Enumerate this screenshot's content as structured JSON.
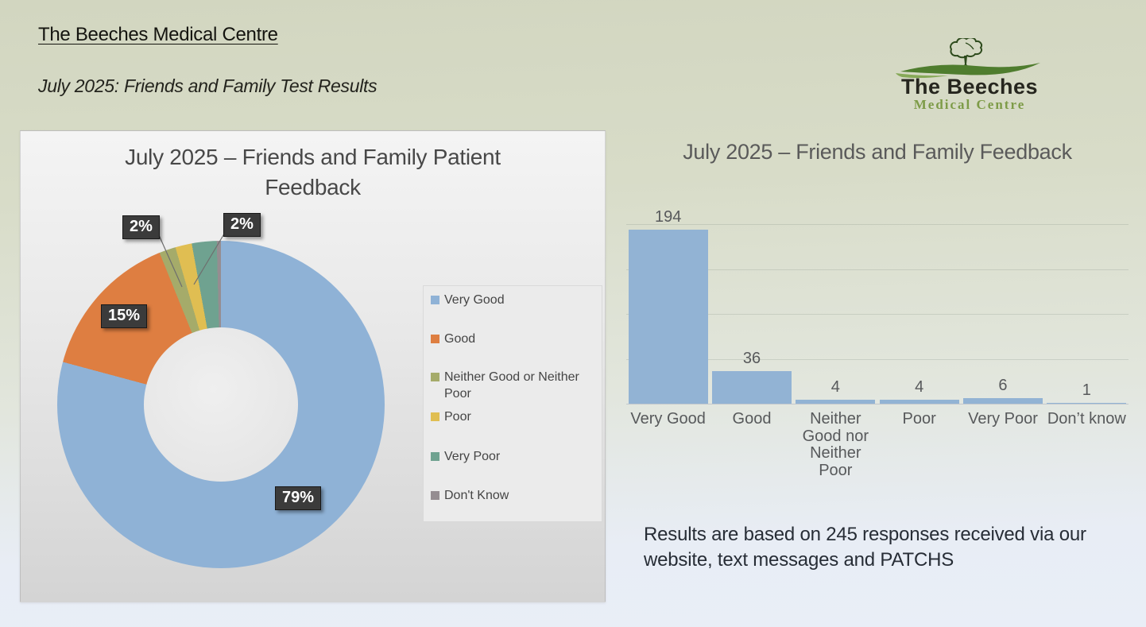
{
  "header": {
    "title": "The Beeches Medical Centre",
    "subtitle": "July 2025: Friends and Family Test Results"
  },
  "logo": {
    "name": "The Beeches",
    "tagline": "Medical Centre"
  },
  "footer_note": "Results are based on 245 responses received via our website, text messages and PATCHS",
  "colors": {
    "very_good": "#8fb2d6",
    "good": "#de7e41",
    "neither": "#a5ab6a",
    "poor": "#e0be52",
    "very_poor": "#6fa290",
    "dont_know": "#958d91",
    "bar_fill": "#92b3d4",
    "label_box": "#3b3b3b"
  },
  "chart_data": [
    {
      "type": "pie",
      "subtype": "donut",
      "title": "July 2025 – Friends and Family Patient Feedback",
      "categories": [
        "Very Good",
        "Good",
        "Neither Good or Neither Poor",
        "Poor",
        "Very Poor",
        "Don't Know"
      ],
      "values": [
        194,
        36,
        4,
        4,
        6,
        1
      ],
      "colors": [
        "#8fb2d6",
        "#de7e41",
        "#a5ab6a",
        "#e0be52",
        "#6fa290",
        "#958d91"
      ],
      "percent_labels": {
        "very_good": "79%",
        "good": "15%",
        "neither": "2%",
        "very_poor": "2%"
      },
      "legend_position": "right",
      "start_angle_deg": 0,
      "direction": "clockwise"
    },
    {
      "type": "bar",
      "title": "July 2025 – Friends and Family Feedback",
      "categories": [
        "Very Good",
        "Good",
        "Neither\nGood nor\nNeither Poor",
        "Poor",
        "Very Poor",
        "Don’t know"
      ],
      "values": [
        194,
        36,
        4,
        4,
        6,
        1
      ],
      "data_labels": [
        "194",
        "36",
        "4",
        "4",
        "6",
        "1"
      ],
      "ylim": [
        0,
        200
      ],
      "gridline_values": [
        50,
        100,
        150,
        200
      ],
      "grid": true,
      "legend": false,
      "xlabel": "",
      "ylabel": ""
    }
  ]
}
